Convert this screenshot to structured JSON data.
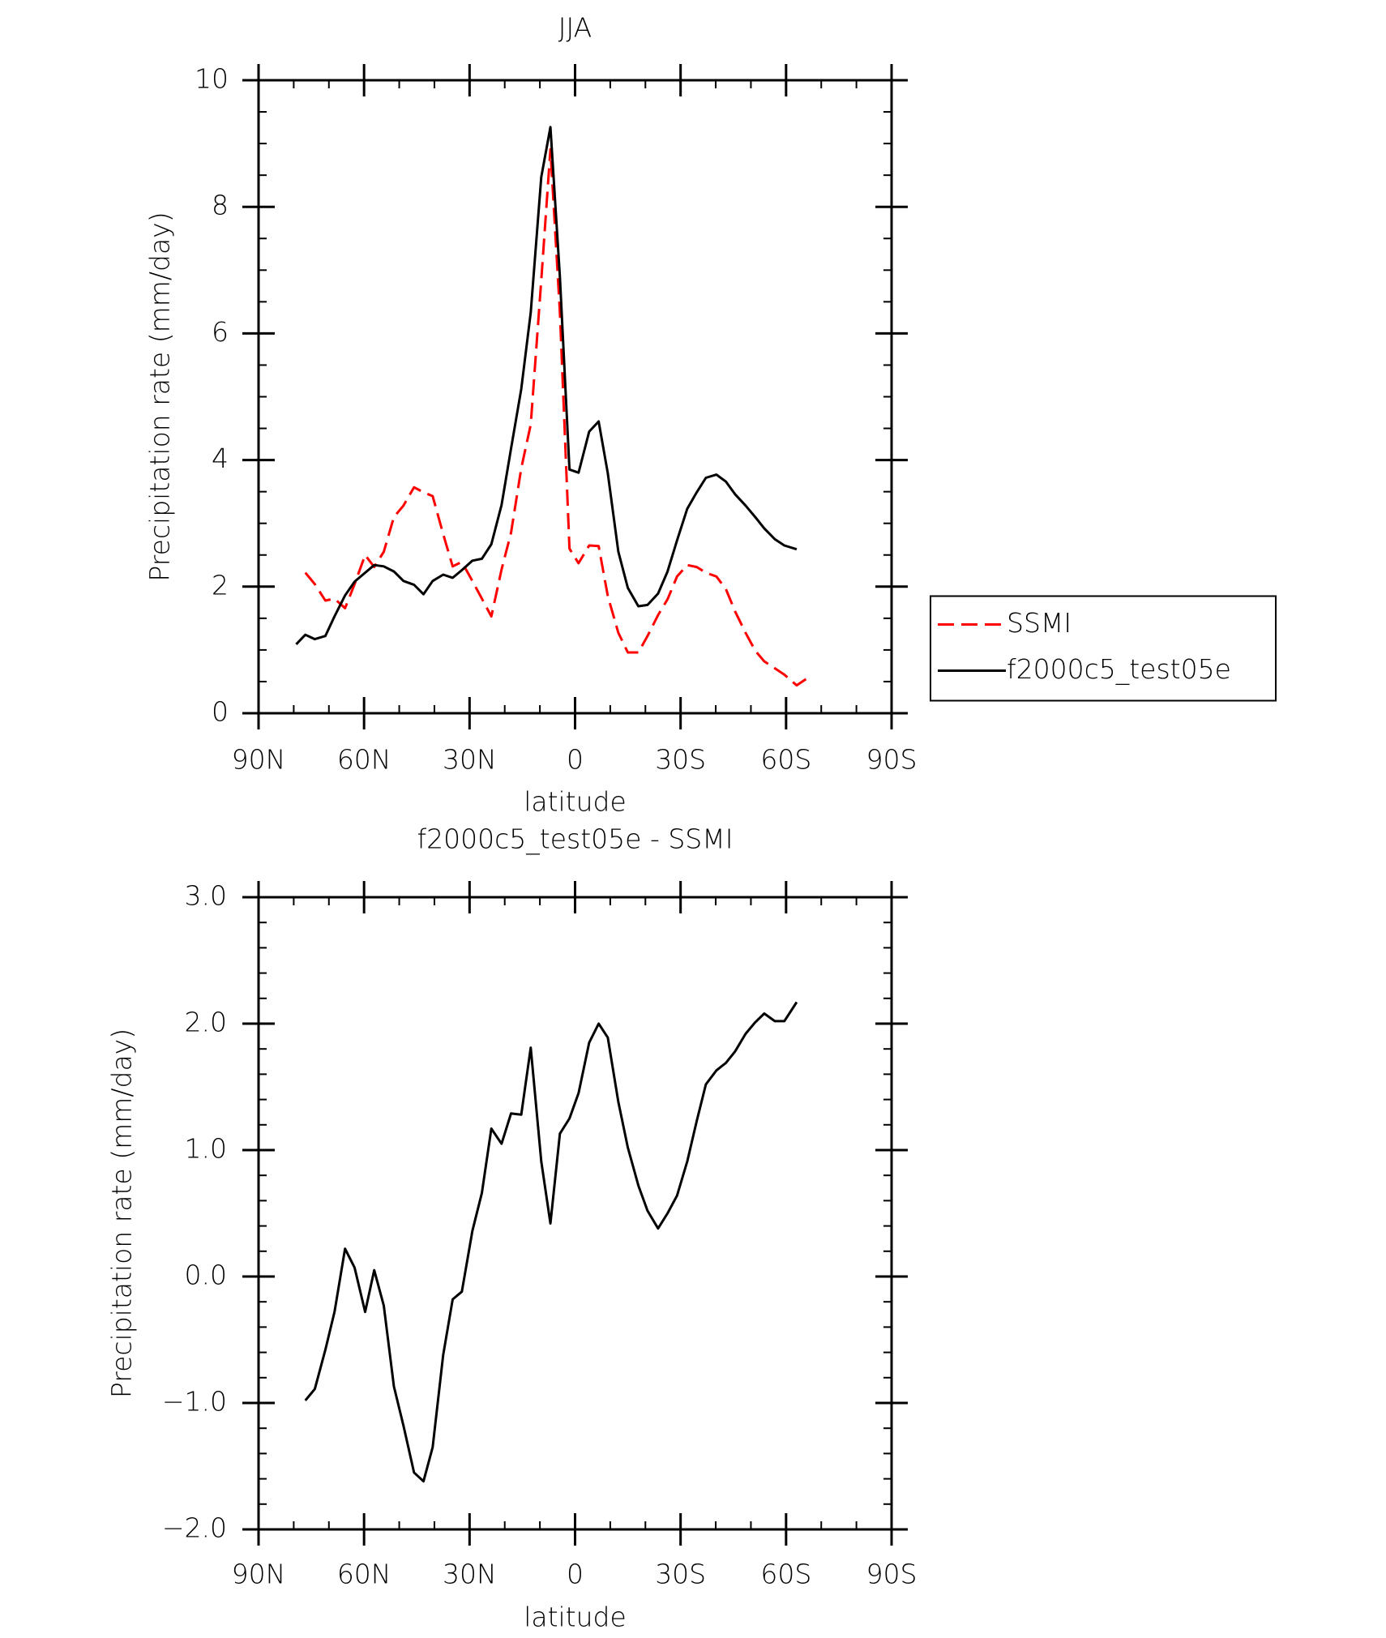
{
  "chart_data": [
    {
      "type": "line",
      "title": "JJA",
      "xlabel": "latitude",
      "ylabel": "Precipitation rate (mm/day)",
      "x": [
        79.3,
        76.7,
        74.0,
        71.0,
        68.4,
        65.4,
        62.7,
        59.7,
        57.1,
        54.4,
        51.5,
        48.8,
        45.8,
        43.1,
        40.5,
        37.5,
        34.8,
        32.2,
        29.2,
        26.5,
        23.8,
        20.9,
        18.2,
        15.3,
        12.6,
        9.6,
        7.0,
        4.3,
        1.6,
        -1.0,
        -4.0,
        -6.7,
        -9.3,
        -12.3,
        -15.0,
        -18.0,
        -20.6,
        -23.6,
        -26.3,
        -29.0,
        -31.9,
        -34.6,
        -37.2,
        -40.2,
        -42.9,
        -45.5,
        -48.5,
        -51.2,
        -53.8,
        -56.8,
        -59.5,
        -63.0,
        -65.7
      ],
      "series": [
        {
          "name": "SSMI",
          "color": "#ff0000",
          "linestyle": "dashed",
          "values": [
            null,
            2.22,
            2.04,
            1.78,
            1.81,
            1.66,
            2.04,
            2.5,
            2.31,
            2.55,
            3.1,
            3.28,
            3.57,
            3.49,
            3.43,
            2.83,
            2.32,
            2.39,
            2.09,
            1.81,
            1.53,
            2.27,
            2.85,
            3.87,
            4.56,
            6.84,
            8.91,
            6.33,
            2.6,
            2.37,
            2.65,
            2.64,
            1.85,
            1.27,
            0.96,
            0.96,
            1.22,
            1.55,
            1.8,
            2.16,
            2.34,
            2.31,
            2.22,
            2.16,
            1.96,
            1.61,
            1.27,
            0.99,
            0.82,
            0.71,
            0.61,
            0.44,
            0.54
          ]
        },
        {
          "name": "f2000c5_test05e",
          "color": "#000000",
          "linestyle": "solid",
          "values": [
            1.09,
            1.24,
            1.17,
            1.22,
            1.53,
            1.86,
            2.08,
            2.22,
            2.34,
            2.32,
            2.24,
            2.09,
            2.03,
            1.88,
            2.09,
            2.19,
            2.14,
            2.26,
            2.41,
            2.44,
            2.67,
            3.29,
            4.18,
            5.12,
            6.33,
            8.47,
            9.26,
            6.89,
            3.85,
            3.8,
            4.45,
            4.61,
            3.79,
            2.55,
            1.98,
            1.69,
            1.71,
            1.89,
            2.24,
            2.73,
            3.23,
            3.49,
            3.72,
            3.77,
            3.66,
            3.46,
            3.28,
            3.1,
            2.92,
            2.75,
            2.65,
            2.59,
            null
          ]
        }
      ],
      "xlim": [
        90,
        -90
      ],
      "xticks": [
        {
          "value": 90,
          "label": "90N"
        },
        {
          "value": 60,
          "label": "60N"
        },
        {
          "value": 30,
          "label": "30N"
        },
        0,
        {
          "value": -30,
          "label": "30S"
        },
        {
          "value": -60,
          "label": "60S"
        },
        {
          "value": -90,
          "label": "90S"
        }
      ],
      "minor_xticks": [
        80,
        70,
        50,
        40,
        20,
        10,
        -10,
        -20,
        -40,
        -50,
        -70,
        -80
      ],
      "ylim": [
        0,
        10
      ],
      "yticks": [
        0,
        2,
        4,
        6,
        8,
        10
      ],
      "minor_yticks": [
        0.5,
        1,
        1.5,
        2.5,
        3,
        3.5,
        4.5,
        5,
        5.5,
        6.5,
        7,
        7.5,
        8.5,
        9,
        9.5
      ],
      "legend": true,
      "legend_position": "right"
    },
    {
      "type": "line",
      "title": "f2000c5_test05e - SSMI",
      "xlabel": "latitude",
      "ylabel": "Precipitation rate (mm/day)",
      "x": [
        76.7,
        74.0,
        71.0,
        68.4,
        65.4,
        62.7,
        59.7,
        57.1,
        54.4,
        51.5,
        48.8,
        45.8,
        43.1,
        40.5,
        37.5,
        34.8,
        32.2,
        29.2,
        26.5,
        23.8,
        20.9,
        18.2,
        15.3,
        12.6,
        9.6,
        7.0,
        4.3,
        1.6,
        -1.0,
        -4.0,
        -6.7,
        -9.3,
        -12.3,
        -15.0,
        -18.0,
        -20.6,
        -23.6,
        -26.3,
        -29.0,
        -31.9,
        -34.6,
        -37.2,
        -40.2,
        -42.9,
        -45.5,
        -48.5,
        -51.2,
        -53.8,
        -56.8,
        -59.5,
        -63.0
      ],
      "series": [
        {
          "color": "#000000",
          "linestyle": "solid",
          "values": [
            -0.98,
            -0.89,
            -0.58,
            -0.28,
            0.22,
            0.07,
            -0.28,
            0.05,
            -0.23,
            -0.87,
            -1.18,
            -1.55,
            -1.62,
            -1.35,
            -0.62,
            -0.18,
            -0.12,
            0.36,
            0.66,
            1.17,
            1.05,
            1.29,
            1.28,
            1.81,
            0.91,
            0.42,
            1.13,
            1.25,
            1.45,
            1.85,
            2.0,
            1.89,
            1.38,
            1.02,
            0.72,
            0.52,
            0.38,
            0.5,
            0.64,
            0.91,
            1.23,
            1.52,
            1.63,
            1.69,
            1.78,
            1.92,
            2.01,
            2.08,
            2.02,
            2.02,
            2.17
          ]
        }
      ],
      "xlim": [
        90,
        -90
      ],
      "xticks": [
        {
          "value": 90,
          "label": "90N"
        },
        {
          "value": 60,
          "label": "60N"
        },
        {
          "value": 30,
          "label": "30N"
        },
        0,
        {
          "value": -30,
          "label": "30S"
        },
        {
          "value": -60,
          "label": "60S"
        },
        {
          "value": -90,
          "label": "90S"
        }
      ],
      "minor_xticks": [
        80,
        70,
        50,
        40,
        20,
        10,
        -10,
        -20,
        -40,
        -50,
        -70,
        -80
      ],
      "ylim": [
        -2,
        3
      ],
      "yticks": [
        {
          "value": -2,
          "label": "−2.0"
        },
        {
          "value": -1,
          "label": "−1.0"
        },
        {
          "value": 0,
          "label": "0.0"
        },
        {
          "value": 1,
          "label": "1.0"
        },
        {
          "value": 2,
          "label": "2.0"
        },
        {
          "value": 3,
          "label": "3.0"
        }
      ],
      "minor_yticks": [
        -1.8,
        -1.6,
        -1.4,
        -1.2,
        -0.8,
        -0.6,
        -0.4,
        -0.2,
        0.2,
        0.4,
        0.6,
        0.8,
        1.2,
        1.4,
        1.6,
        1.8,
        2.2,
        2.4,
        2.6,
        2.8
      ],
      "legend": false
    }
  ]
}
